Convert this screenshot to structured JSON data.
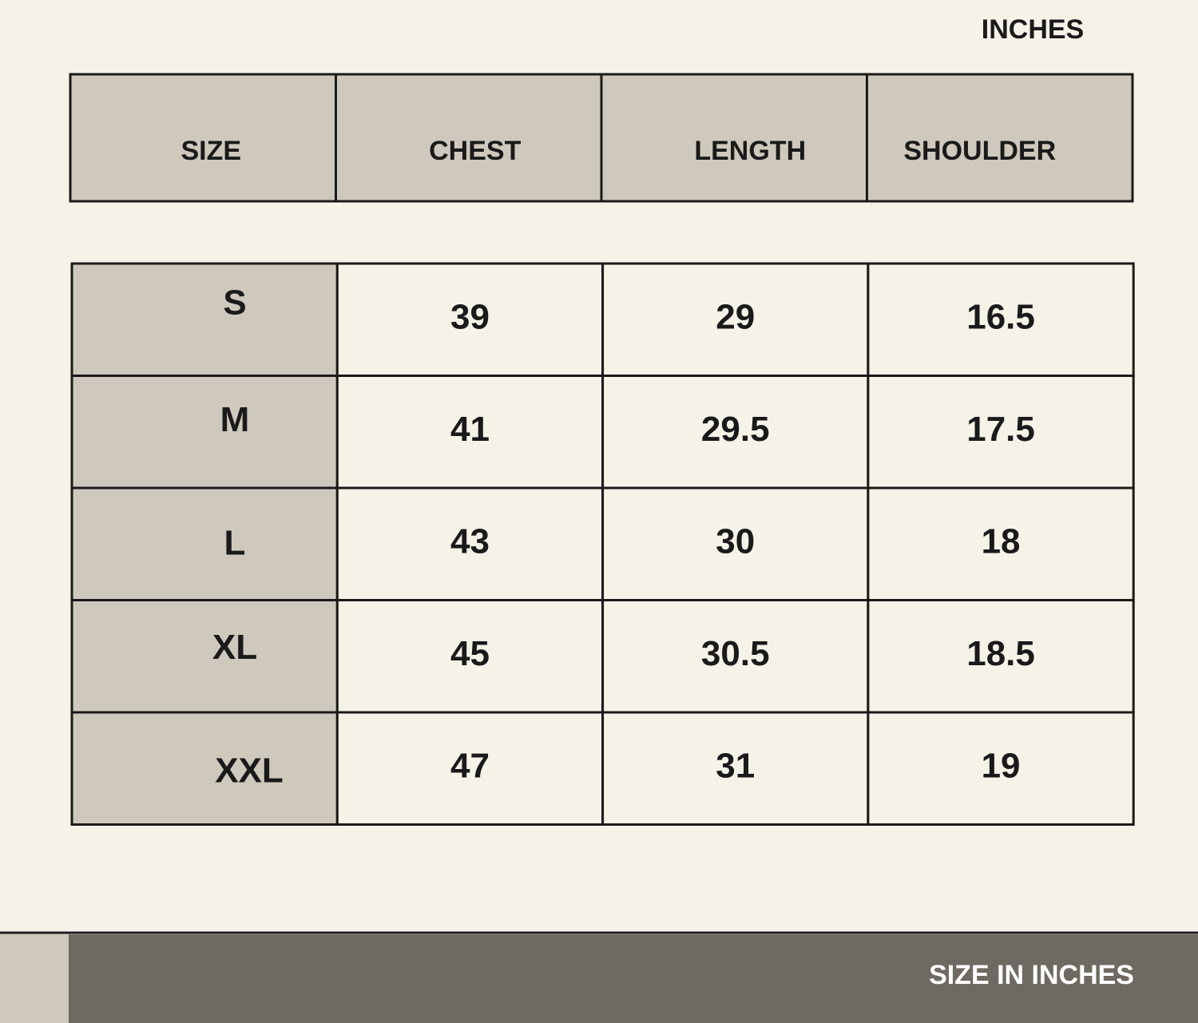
{
  "unit_label": "INCHES",
  "header": [
    "SIZE",
    "CHEST",
    "LENGTH",
    "SHOULDER"
  ],
  "rows": [
    [
      "S",
      39,
      29,
      16.5
    ],
    [
      "M",
      41,
      29.5,
      17.5
    ],
    [
      "L",
      43,
      30,
      18
    ],
    [
      "XL",
      45,
      30.5,
      18.5
    ],
    [
      "XXL",
      47,
      31,
      19
    ]
  ],
  "footer": "SIZE IN INCHES"
}
